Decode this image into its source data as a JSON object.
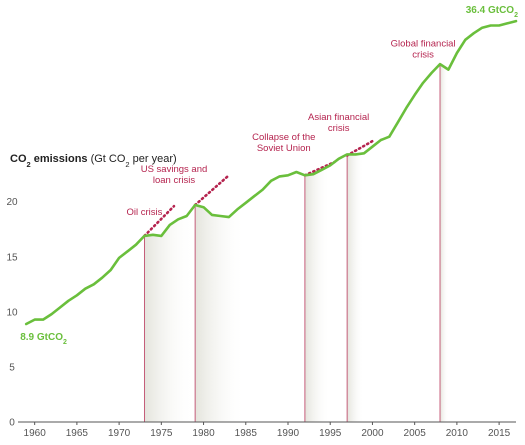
{
  "chart_data": {
    "type": "line",
    "ylabel_parts": {
      "co": "CO",
      "sub1": "2",
      "emissions": " emissions",
      "paren_open": " (Gt CO",
      "sub2": "2",
      "paren_close": " per year)"
    },
    "xlim": [
      1958.5,
      2017
    ],
    "ylim": [
      0,
      36.5
    ],
    "yticks": [
      0,
      5,
      10,
      15,
      20
    ],
    "xticks": [
      1960,
      1965,
      1970,
      1975,
      1980,
      1985,
      1990,
      1995,
      2000,
      2005,
      2010,
      2015
    ],
    "grid": false,
    "colors": {
      "line": "#6abf3c",
      "crisis": "#b5244f",
      "axis": "#555555",
      "shade": "#eeeeea"
    },
    "series": [
      {
        "x": [
          1959,
          1960,
          1961,
          1962,
          1963,
          1964,
          1965,
          1966,
          1967,
          1968,
          1969,
          1970,
          1971,
          1972,
          1973,
          1974,
          1975,
          1976,
          1977,
          1978,
          1979,
          1980,
          1981,
          1982,
          1983,
          1984,
          1985,
          1986,
          1987,
          1988,
          1989,
          1990,
          1991,
          1992,
          1993,
          1994,
          1995,
          1996,
          1997,
          1998,
          1999,
          2000,
          2001,
          2002,
          2003,
          2004,
          2005,
          2006,
          2007,
          2008,
          2009,
          2010,
          2011,
          2012,
          2013,
          2014,
          2015,
          2016,
          2017
        ],
        "y": [
          8.9,
          9.3,
          9.3,
          9.8,
          10.4,
          11.0,
          11.5,
          12.1,
          12.5,
          13.1,
          13.8,
          14.9,
          15.5,
          16.1,
          16.9,
          17.0,
          16.9,
          17.9,
          18.4,
          18.7,
          19.7,
          19.5,
          18.8,
          18.7,
          18.6,
          19.3,
          19.9,
          20.5,
          21.1,
          21.9,
          22.3,
          22.4,
          22.7,
          22.4,
          22.5,
          22.9,
          23.3,
          23.9,
          24.3,
          24.3,
          24.4,
          25.0,
          25.6,
          25.9,
          27.2,
          28.5,
          29.7,
          30.8,
          31.7,
          32.5,
          32.0,
          33.5,
          34.7,
          35.3,
          35.8,
          36.0,
          36.0,
          36.2,
          36.4
        ]
      }
    ],
    "start_label": {
      "x": 1959,
      "y": 8.9,
      "main": "8.9 GtCO",
      "sub": "2"
    },
    "end_label": {
      "x": 2017,
      "y": 36.4,
      "main": "36.4 GtCO",
      "sub": "2"
    },
    "crises": [
      {
        "x": 1973,
        "y": 16.9,
        "trend_end": [
          1976.5,
          19.6
        ],
        "shade_to": 1979,
        "label_anchor": {
          "year": 1973,
          "value": 18.8
        },
        "label_lines": [
          "Oil crisis"
        ]
      },
      {
        "x": 1979,
        "y": 19.7,
        "trend_end": [
          1983.0,
          22.4
        ],
        "shade_to": 1985,
        "label_anchor": {
          "year": 1976.5,
          "value": 22.7
        },
        "label_lines": [
          "US savings and",
          "loan crisis"
        ]
      },
      {
        "x": 1992,
        "y": 22.4,
        "trend_end": [
          1995.5,
          23.6
        ],
        "shade_to": 1995,
        "label_anchor": {
          "year": 1989.5,
          "value": 25.6
        },
        "label_lines": [
          "Collapse of the",
          "Soviet Union"
        ]
      },
      {
        "x": 1997,
        "y": 24.2,
        "trend_end": [
          2000.0,
          25.5
        ],
        "shade_to": 1999,
        "label_anchor": {
          "year": 1996,
          "value": 27.4
        },
        "label_lines": [
          "Asian financial",
          "crisis"
        ]
      },
      {
        "x": 2008,
        "y": 32.6,
        "trend_end": null,
        "shade_to": 2009,
        "label_anchor": {
          "year": 2006,
          "value": 34.1
        },
        "label_lines": [
          "Global financial",
          "crisis"
        ]
      }
    ]
  }
}
